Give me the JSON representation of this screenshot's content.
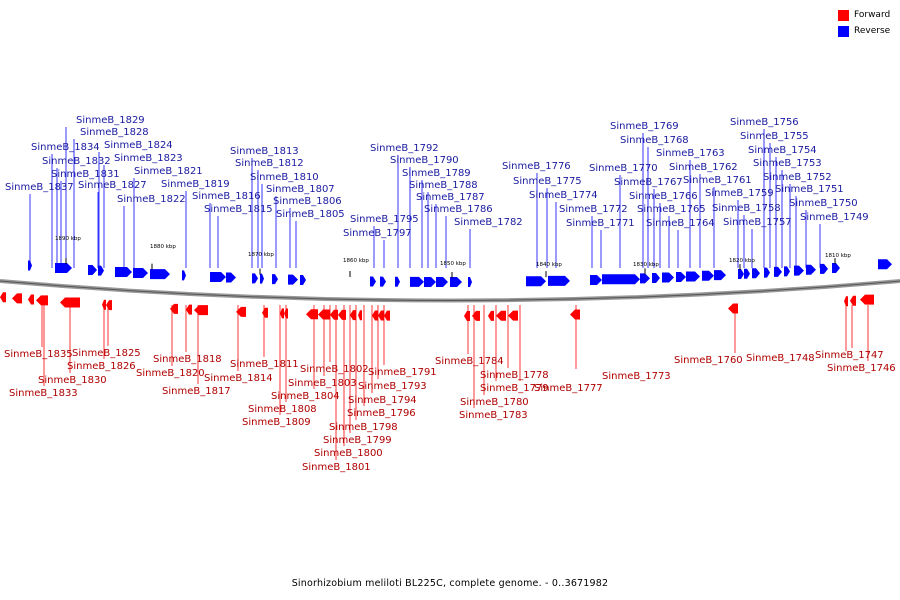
{
  "legend": [
    {
      "label": "Forward",
      "color": "#ff0000"
    },
    {
      "label": "Reverse",
      "color": "#0000ff"
    }
  ],
  "scale_labels": [
    "1890 kbp",
    "1880 kbp",
    "1870 kbp",
    "1860 kbp",
    "1850 kbp",
    "1840 kbp",
    "1830 kbp",
    "1820 kbp",
    "1810 kbp"
  ],
  "reverse_genes": [
    "SinmeB_1837",
    "SinmeB_1834",
    "SinmeB_1832",
    "SinmeB_1831",
    "SinmeB_1829",
    "SinmeB_1828",
    "SinmeB_1827",
    "SinmeB_1824",
    "SinmeB_1823",
    "SinmeB_1822",
    "SinmeB_1821",
    "SinmeB_1819",
    "SinmeB_1816",
    "SinmeB_1815",
    "SinmeB_1813",
    "SinmeB_1812",
    "SinmeB_1810",
    "SinmeB_1807",
    "SinmeB_1806",
    "SinmeB_1805",
    "SinmeB_1795",
    "SinmeB_1797",
    "SinmeB_1792",
    "SinmeB_1790",
    "SinmeB_1789",
    "SinmeB_1788",
    "SinmeB_1787",
    "SinmeB_1786",
    "SinmeB_1782",
    "SinmeB_1776",
    "SinmeB_1775",
    "SinmeB_1774",
    "SinmeB_1772",
    "SinmeB_1771",
    "SinmeB_1770",
    "SinmeB_1769",
    "SinmeB_1768",
    "SinmeB_1767",
    "SinmeB_1766",
    "SinmeB_1765",
    "SinmeB_1764",
    "SinmeB_1763",
    "SinmeB_1762",
    "SinmeB_1761",
    "SinmeB_1759",
    "SinmeB_1758",
    "SinmeB_1757",
    "SinmeB_1756",
    "SinmeB_1755",
    "SinmeB_1754",
    "SinmeB_1753",
    "SinmeB_1752",
    "SinmeB_1751",
    "SinmeB_1750",
    "SinmeB_1749"
  ],
  "forward_genes": [
    "SinmeB_1835",
    "SinmeB_1833",
    "SinmeB_1830",
    "SinmeB_1826",
    "SinmeB_1825",
    "SinmeB_1820",
    "SinmeB_1818",
    "SinmeB_1817",
    "SinmeB_1814",
    "SinmeB_1811",
    "SinmeB_1809",
    "SinmeB_1808",
    "SinmeB_1804",
    "SinmeB_1803",
    "SinmeB_1802",
    "SinmeB_1801",
    "SinmeB_1800",
    "SinmeB_1799",
    "SinmeB_1798",
    "SinmeB_1796",
    "SinmeB_1794",
    "SinmeB_1793",
    "SinmeB_1791",
    "SinmeB_1784",
    "SinmeB_1783",
    "SinmeB_1780",
    "SinmeB_1779",
    "SinmeB_1778",
    "SinmeB_1777",
    "SinmeB_1773",
    "SinmeB_1760",
    "SinmeB_1748",
    "SinmeB_1747",
    "SinmeB_1746"
  ],
  "footer": "Sinorhizobium meliloti BL225C, complete genome. - 0..3671982"
}
